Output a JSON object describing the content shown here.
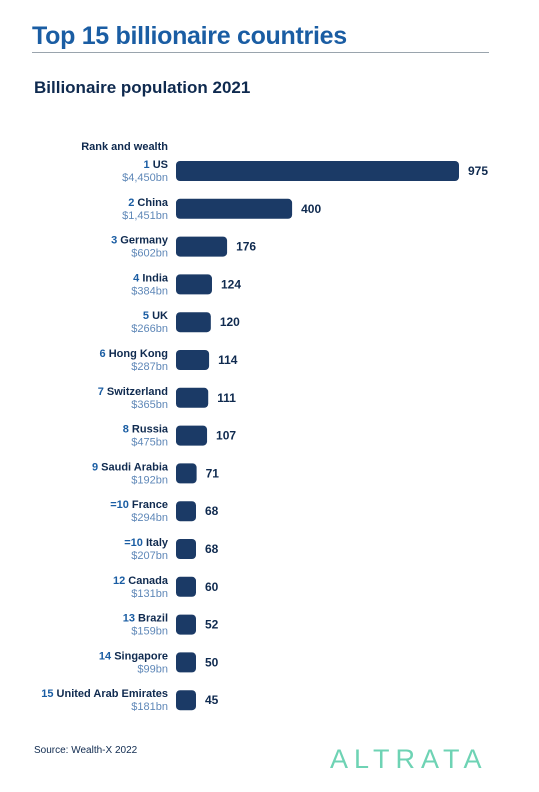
{
  "header": {
    "title": "Top 15 billionaire countries",
    "subtitle": "Billionaire population 2021"
  },
  "chart_data": {
    "type": "bar",
    "orientation": "horizontal",
    "title": "Top 15 billionaire countries",
    "subtitle": "Billionaire population 2021",
    "row_header": "Rank and wealth",
    "categories": [
      "US",
      "China",
      "Germany",
      "India",
      "UK",
      "Hong Kong",
      "Switzerland",
      "Russia",
      "Saudi Arabia",
      "France",
      "Italy",
      "Canada",
      "Brazil",
      "Singapore",
      "United Arab Emirates"
    ],
    "ranks": [
      "1",
      "2",
      "3",
      "4",
      "5",
      "6",
      "7",
      "8",
      "9",
      "=10",
      "=10",
      "12",
      "13",
      "14",
      "15"
    ],
    "wealth": [
      "$4,450bn",
      "$1,451bn",
      "$602bn",
      "$384bn",
      "$266bn",
      "$287bn",
      "$365bn",
      "$475bn",
      "$192bn",
      "$294bn",
      "$207bn",
      "$131bn",
      "$159bn",
      "$99bn",
      "$181bn"
    ],
    "values": [
      975,
      400,
      176,
      124,
      120,
      114,
      111,
      107,
      71,
      68,
      68,
      60,
      52,
      50,
      45
    ],
    "xlim": [
      0,
      975
    ],
    "grid": false,
    "legend": "none",
    "colors": {
      "bar": "#1b3a66",
      "rank": "#1a5da3",
      "country": "#0f2a4f",
      "wealth": "#5f88b8",
      "value": "#0f2a4f"
    }
  },
  "footer": {
    "source": "Source: Wealth-X 2022",
    "brand": "ALTRATA"
  }
}
